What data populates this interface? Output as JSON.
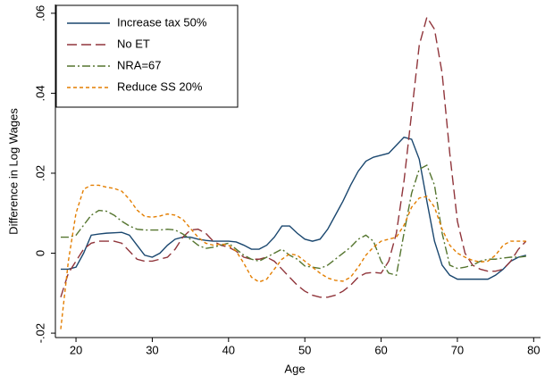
{
  "chart_data": {
    "type": "line",
    "xlabel": "Age",
    "ylabel": "Difference in Log Wages",
    "x": [
      18,
      19,
      20,
      21,
      22,
      23,
      24,
      25,
      26,
      27,
      28,
      29,
      30,
      31,
      32,
      33,
      34,
      35,
      36,
      37,
      38,
      39,
      40,
      41,
      42,
      43,
      44,
      45,
      46,
      47,
      48,
      49,
      50,
      51,
      52,
      53,
      54,
      55,
      56,
      57,
      58,
      59,
      60,
      61,
      62,
      63,
      64,
      65,
      66,
      67,
      68,
      69,
      70,
      71,
      72,
      73,
      74,
      75,
      76,
      77,
      78,
      79
    ],
    "series": [
      {
        "name": "Increase tax 50%",
        "color": "#1a476f",
        "dash": "none",
        "values": [
          -0.004,
          -0.004,
          -0.0035,
          0,
          0.0045,
          0.0048,
          0.005,
          0.0051,
          0.0052,
          0.0045,
          0.002,
          -0.0005,
          -0.001,
          0,
          0.002,
          0.0035,
          0.004,
          0.004,
          0.0035,
          0.0032,
          0.003,
          0.003,
          0.003,
          0.0028,
          0.002,
          0.001,
          0.001,
          0.002,
          0.004,
          0.0068,
          0.0068,
          0.005,
          0.0035,
          0.003,
          0.0035,
          0.006,
          0.0095,
          0.013,
          0.017,
          0.0205,
          0.023,
          0.024,
          0.0245,
          0.025,
          0.027,
          0.029,
          0.0285,
          0.0235,
          0.013,
          0.003,
          -0.003,
          -0.0055,
          -0.0065,
          -0.0065,
          -0.0065,
          -0.0065,
          -0.0065,
          -0.0055,
          -0.004,
          -0.002,
          -0.001,
          -0.0005
        ]
      },
      {
        "name": "No ET",
        "color": "#90353b",
        "dash": "11,5",
        "values": [
          -0.011,
          -0.005,
          -0.002,
          0.001,
          0.0025,
          0.003,
          0.003,
          0.003,
          0.0025,
          0.0005,
          -0.0015,
          -0.002,
          -0.002,
          -0.0015,
          -0.001,
          0.001,
          0.004,
          0.0058,
          0.006,
          0.005,
          0.003,
          0.002,
          0.0015,
          0.0005,
          -0.001,
          -0.0015,
          -0.0015,
          -0.001,
          -0.002,
          -0.004,
          -0.006,
          -0.008,
          -0.0095,
          -0.0105,
          -0.011,
          -0.011,
          -0.0105,
          -0.0095,
          -0.008,
          -0.006,
          -0.005,
          -0.0048,
          -0.005,
          -0.002,
          0.005,
          0.018,
          0.035,
          0.052,
          0.059,
          0.056,
          0.045,
          0.025,
          0.008,
          0,
          -0.003,
          -0.004,
          -0.0045,
          -0.0045,
          -0.004,
          -0.002,
          0.001,
          0.003
        ]
      },
      {
        "name": "NRA=67",
        "color": "#55752f",
        "dash": "9,3,2,3",
        "values": [
          0.004,
          0.004,
          0.0045,
          0.007,
          0.0095,
          0.0107,
          0.0105,
          0.0095,
          0.008,
          0.0068,
          0.006,
          0.0058,
          0.0058,
          0.0058,
          0.006,
          0.0058,
          0.0048,
          0.0035,
          0.002,
          0.0012,
          0.0015,
          0.002,
          0.0025,
          0.001,
          -0.0005,
          -0.0015,
          -0.002,
          -0.001,
          0,
          0.001,
          -0.0005,
          -0.0015,
          -0.0032,
          -0.0035,
          -0.0038,
          -0.003,
          -0.0015,
          0,
          0.0015,
          0.0035,
          0.0045,
          0.003,
          -0.002,
          -0.005,
          -0.0055,
          0.005,
          0.015,
          0.021,
          0.022,
          0.017,
          0.005,
          -0.003,
          -0.0038,
          -0.0035,
          -0.003,
          -0.002,
          -0.0015,
          -0.0015,
          -0.0012,
          -0.001,
          -0.001,
          -0.0008
        ]
      },
      {
        "name": "Reduce SS 20%",
        "color": "#e37e00",
        "dash": "4,3",
        "values": [
          -0.019,
          -0.002,
          0.01,
          0.016,
          0.017,
          0.017,
          0.0165,
          0.0162,
          0.0155,
          0.0135,
          0.0108,
          0.0092,
          0.009,
          0.0093,
          0.0098,
          0.0095,
          0.0085,
          0.0062,
          0.004,
          0.0025,
          0.002,
          0.0023,
          0.002,
          0.0005,
          -0.0025,
          -0.006,
          -0.0072,
          -0.0065,
          -0.004,
          -0.0015,
          -0.0002,
          -0.0005,
          -0.002,
          -0.0035,
          -0.005,
          -0.0062,
          -0.0068,
          -0.007,
          -0.006,
          -0.0035,
          -0.0005,
          0.0015,
          0.003,
          0.0035,
          0.004,
          0.007,
          0.0115,
          0.0138,
          0.0142,
          0.0115,
          0.006,
          0.002,
          0,
          -0.001,
          -0.0018,
          -0.0022,
          -0.002,
          -0.0005,
          0.002,
          0.003,
          0.003,
          0.003
        ]
      }
    ],
    "xlim": [
      17.3,
      80.9
    ],
    "ylim": [
      -0.0211,
      0.0622
    ],
    "xticks": [
      20,
      30,
      40,
      50,
      60,
      70,
      80
    ],
    "yticks": [
      {
        "value": -0.02,
        "label": "-.02"
      },
      0,
      {
        "value": 0.02,
        "label": ".02"
      },
      {
        "value": 0.04,
        "label": ".04"
      },
      {
        "value": 0.06,
        "label": ".06"
      }
    ],
    "legend": "top-left"
  }
}
